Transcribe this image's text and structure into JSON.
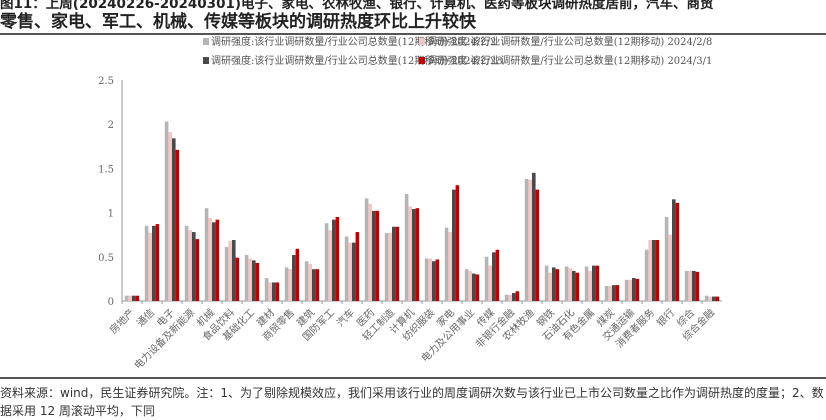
{
  "title": {
    "line1": "图11：上周(20240226-20240301)电子、家电、农林牧渔、银行、计算机、医药等板块调研热度居前，汽车、商贸",
    "line2": "零售、家电、军工、机械、传媒等板块的调研热度环比上升较快"
  },
  "footer": {
    "line1": "资料来源：wind，民生证券研究院。注：1、为了剔除规模效应，我们采用该行业的周度调研次数与该行业已上市公司数量之比作为调研热度的度量；2、数",
    "line2": "据采用 12 周滚动平均，下同"
  },
  "chart_data": {
    "type": "bar",
    "title": "",
    "xlabel": "",
    "ylabel": "",
    "ylim": [
      0,
      2.5
    ],
    "yticks": [
      "0",
      "0.5",
      "1",
      "1.5",
      "2",
      "2.5"
    ],
    "grid": false,
    "legend_position": "top",
    "categories": [
      "房地产",
      "通信",
      "电子",
      "电力设备及新能源",
      "机械",
      "食品饮料",
      "基础化工",
      "建材",
      "商贸零售",
      "建筑",
      "国防军工",
      "汽车",
      "医药",
      "轻工制造",
      "计算机",
      "纺织服装",
      "家电",
      "电力及公用事业",
      "传媒",
      "非银行金融",
      "农林牧渔",
      "钢铁",
      "石油石化",
      "有色金属",
      "煤炭",
      "交通运输",
      "消费者服务",
      "银行",
      "综合",
      "综合金融"
    ],
    "series": [
      {
        "name": "调研强度:该行业调研数量/行业公司总数量(12期移动) 2024/2/2",
        "color": "#b5b5b5",
        "values": [
          0.06,
          0.85,
          2.03,
          0.85,
          1.05,
          0.61,
          0.52,
          0.26,
          0.38,
          0.45,
          0.88,
          0.73,
          1.16,
          0.77,
          1.21,
          0.48,
          0.83,
          0.36,
          0.5,
          0.07,
          1.38,
          0.4,
          0.39,
          0.39,
          0.17,
          0.24,
          0.58,
          0.95,
          0.34,
          0.06
        ]
      },
      {
        "name": "调研强度:该行业调研数量/行业公司总数量(12期移动) 2024/2/8",
        "color": "#f0c6c6",
        "values": [
          0.06,
          0.77,
          1.91,
          0.8,
          0.94,
          0.68,
          0.48,
          0.21,
          0.36,
          0.42,
          0.8,
          0.66,
          1.1,
          0.77,
          1.07,
          0.48,
          0.78,
          0.34,
          0.4,
          0.07,
          1.37,
          0.32,
          0.37,
          0.34,
          0.17,
          0.24,
          0.69,
          0.75,
          0.34,
          0.05
        ]
      },
      {
        "name": "调研强度:该行业调研数量/行业公司总数量(12期移动) 2024/2/23",
        "color": "#4a4a4a",
        "values": [
          0.06,
          0.85,
          1.84,
          0.78,
          0.89,
          0.69,
          0.46,
          0.21,
          0.52,
          0.36,
          0.92,
          0.66,
          1.02,
          0.84,
          1.04,
          0.45,
          1.26,
          0.31,
          0.55,
          0.09,
          1.45,
          0.38,
          0.34,
          0.4,
          0.18,
          0.26,
          0.69,
          1.15,
          0.34,
          0.05
        ]
      },
      {
        "name": "调研强度:该行业调研数量/行业公司总数量(12期移动) 2024/3/1",
        "color": "#c00000",
        "values": [
          0.06,
          0.87,
          1.71,
          0.7,
          0.92,
          0.49,
          0.43,
          0.21,
          0.59,
          0.36,
          0.95,
          0.78,
          1.02,
          0.84,
          1.05,
          0.47,
          1.31,
          0.3,
          0.58,
          0.11,
          1.26,
          0.36,
          0.32,
          0.4,
          0.18,
          0.25,
          0.69,
          1.11,
          0.33,
          0.05
        ]
      }
    ]
  }
}
